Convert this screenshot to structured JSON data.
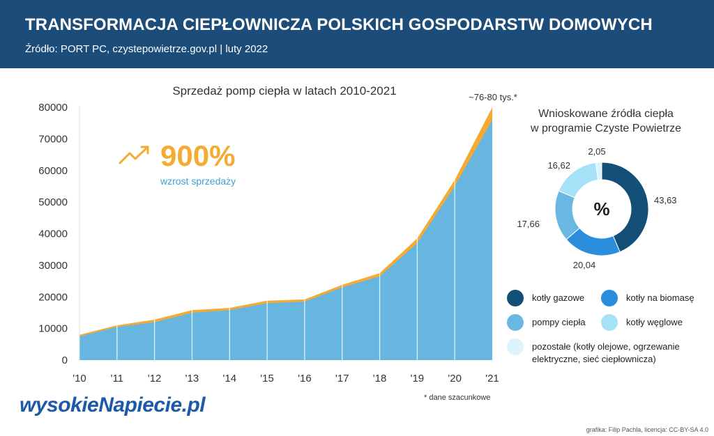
{
  "header": {
    "title": "TRANSFORMACJA CIEPŁOWNICZA POLSKICH GOSPODARSTW DOMOWYCH",
    "source": "Źródło: PORT PC, czystepowietrze.gov.pl | luty 2022"
  },
  "highlight": {
    "value": "900%",
    "label": "wzrost sprzedaży",
    "icon": "trend-up-arrow-icon"
  },
  "annotation_last": "~76-80 tys.*",
  "footnote": "* dane szacunkowe",
  "logo": "wysokieNapiecie.pl",
  "credits": "grafika: Filip Pachla, licencja: CC-BY-SA 4.0",
  "pie_center": "%",
  "colors": {
    "header_bg": "#1b4c7a",
    "area_fill": "#67b6e0",
    "area_line": "#f4aa33",
    "highlight": "#f4aa33",
    "label_blue": "#3e9fd6"
  },
  "chart_data": [
    {
      "type": "area",
      "title": "Sprzedaż pomp ciepła w latach 2010-2021",
      "x": [
        "'10",
        "'11",
        "'12",
        "'13",
        "'14",
        "'15",
        "'16",
        "'17",
        "'18",
        "'19",
        "'20",
        "'21"
      ],
      "series": [
        {
          "values": [
            7500,
            10500,
            12000,
            15000,
            15800,
            18000,
            18500,
            23000,
            26500,
            37000,
            55000,
            76000
          ]
        },
        {
          "values": [
            8000,
            11000,
            12800,
            15800,
            16500,
            18800,
            19200,
            23800,
            27500,
            38500,
            57000,
            80000
          ]
        }
      ],
      "ylim": [
        0,
        80000
      ],
      "yticks": [
        0,
        10000,
        20000,
        30000,
        40000,
        50000,
        60000,
        70000,
        80000
      ],
      "grid": "vertical"
    },
    {
      "type": "pie",
      "title": "Wnioskowane źródła ciepła\nw programie Czyste Powietrze",
      "categories": [
        "kotły gazowe",
        "kotły na biomasę",
        "pompy ciepła",
        "kotły węglowe",
        "pozostałe (kotły olejowe, ogrzewanie elektryczne, sieć ciepłownicza)"
      ],
      "values": [
        43.63,
        20.04,
        17.66,
        16.62,
        2.05
      ],
      "value_labels": [
        "43,63",
        "20,04",
        "17,66",
        "16,62",
        "2,05"
      ],
      "colors": [
        "#144f78",
        "#2a8edc",
        "#6ab8e2",
        "#a6e2f7",
        "#def4fc"
      ],
      "legend_lines": [
        [
          "kotły gazowe"
        ],
        [
          "kotły na biomasę"
        ],
        [
          "pompy ciepła"
        ],
        [
          "kotły węglowe"
        ],
        [
          "pozostałe (kotły olejowe, ogrzewanie",
          "elektryczne, sieć ciepłownicza)"
        ]
      ],
      "legend_position": "bottom"
    }
  ]
}
